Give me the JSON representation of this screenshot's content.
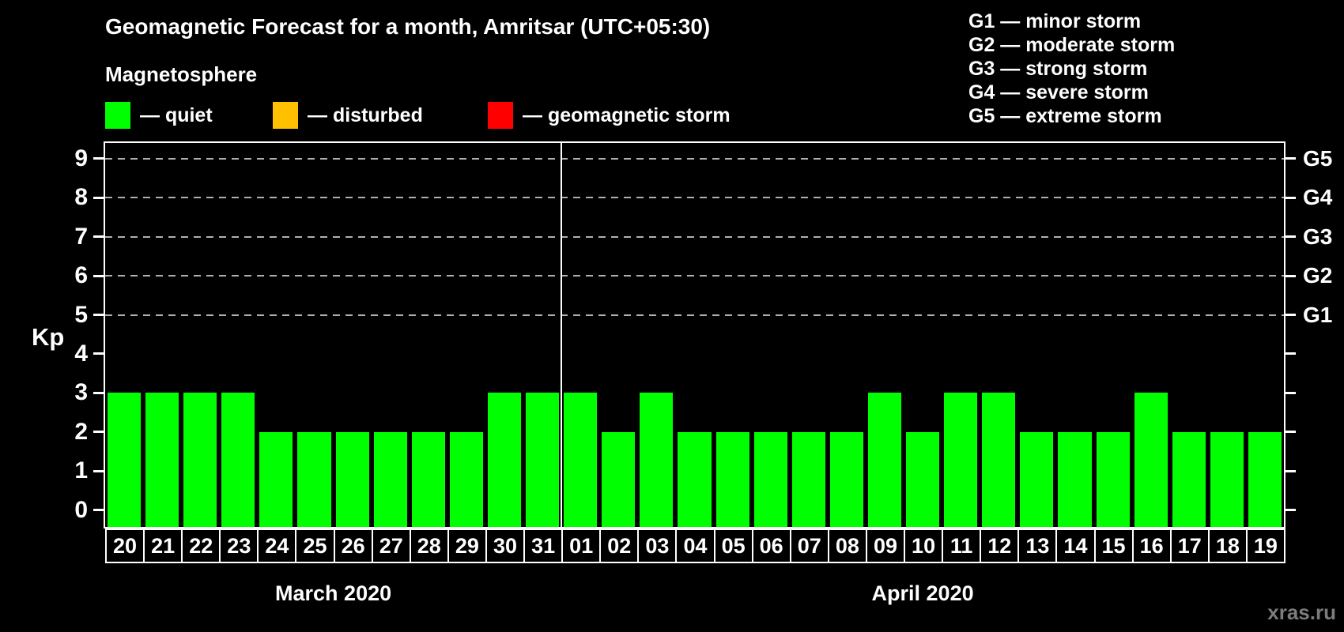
{
  "title": "Geomagnetic Forecast for a month, Amritsar (UTC+05:30)",
  "legend": {
    "heading": "Magnetosphere",
    "items": [
      {
        "name": "quiet",
        "label": "— quiet",
        "color": "#00ff00"
      },
      {
        "name": "disturbed",
        "label": "— disturbed",
        "color": "#ffc000"
      },
      {
        "name": "geomagnetic-storm",
        "label": "— geomagnetic storm",
        "color": "#ff0000"
      }
    ]
  },
  "g_legend": [
    "G1 — minor storm",
    "G2 — moderate storm",
    "G3 — strong storm",
    "G4 — severe storm",
    "G5 — extreme storm"
  ],
  "watermark": "xras.ru",
  "chart_data": {
    "type": "bar",
    "title": "Geomagnetic Forecast for a month, Amritsar (UTC+05:30)",
    "ylabel": "Kp",
    "ylim": [
      0,
      9
    ],
    "yticks": [
      0,
      1,
      2,
      3,
      4,
      5,
      6,
      7,
      8,
      9
    ],
    "gridlines_at": [
      5,
      6,
      7,
      8,
      9
    ],
    "grid": "dashed",
    "right_axis": [
      {
        "value": 5,
        "label": "G1"
      },
      {
        "value": 6,
        "label": "G2"
      },
      {
        "value": 7,
        "label": "G3"
      },
      {
        "value": 8,
        "label": "G4"
      },
      {
        "value": 9,
        "label": "G5"
      }
    ],
    "bar_color": "#00ff00",
    "bar_status": "quiet",
    "months": [
      {
        "label": "March 2020",
        "days": [
          "20",
          "21",
          "22",
          "23",
          "24",
          "25",
          "26",
          "27",
          "28",
          "29",
          "30",
          "31"
        ],
        "values": [
          3,
          3,
          3,
          3,
          2,
          2,
          2,
          2,
          2,
          2,
          3,
          3
        ]
      },
      {
        "label": "April 2020",
        "days": [
          "01",
          "02",
          "03",
          "04",
          "05",
          "06",
          "07",
          "08",
          "09",
          "10",
          "11",
          "12",
          "13",
          "14",
          "15",
          "16",
          "17",
          "18",
          "19"
        ],
        "values": [
          3,
          2,
          3,
          2,
          2,
          2,
          2,
          2,
          3,
          2,
          3,
          3,
          2,
          2,
          2,
          3,
          2,
          2,
          2
        ]
      }
    ]
  },
  "colors": {
    "background": "#000000",
    "axis": "#ffffff",
    "grid": "#b0b0b0",
    "text": "#ffffff",
    "watermark": "#7c7c7c"
  }
}
